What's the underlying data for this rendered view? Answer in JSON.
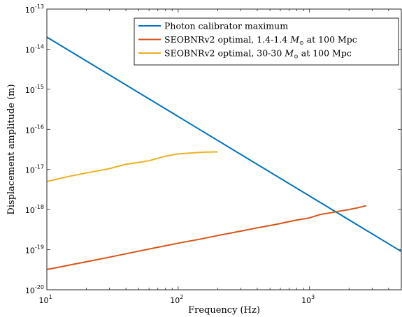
{
  "chart_data": {
    "type": "line",
    "xscale": "log",
    "yscale": "log",
    "xlim": [
      10,
      5000
    ],
    "ylim": [
      1e-20,
      1e-13
    ],
    "xlabel": "Frequency (Hz)",
    "ylabel": "Displacement amplitude (m)",
    "x_ticks": [
      {
        "value": 10,
        "base": "10",
        "exp": "1"
      },
      {
        "value": 100,
        "base": "10",
        "exp": "2"
      },
      {
        "value": 1000,
        "base": "10",
        "exp": "3"
      }
    ],
    "y_ticks": [
      {
        "value": 1e-20,
        "base": "10",
        "exp": "-20"
      },
      {
        "value": 1e-19,
        "base": "10",
        "exp": "-19"
      },
      {
        "value": 1e-18,
        "base": "10",
        "exp": "-18"
      },
      {
        "value": 1e-17,
        "base": "10",
        "exp": "-17"
      },
      {
        "value": 1e-16,
        "base": "10",
        "exp": "-16"
      },
      {
        "value": 1e-15,
        "base": "10",
        "exp": "-15"
      },
      {
        "value": 1e-14,
        "base": "10",
        "exp": "-14"
      },
      {
        "value": 1e-13,
        "base": "10",
        "exp": "-13"
      }
    ],
    "legend_position": "top-right",
    "series": [
      {
        "name": "Photon calibrator maximum",
        "legend_prefix": "Photon calibrator maximum",
        "legend_mass": "",
        "legend_suffix": "",
        "color": "#0072bd",
        "x": [
          10,
          5000
        ],
        "y": [
          2e-14,
          9e-20
        ]
      },
      {
        "name": "SEOBNRv2 optimal, 1.4-1.4 M⊙ at 100 Mpc",
        "legend_prefix": "SEOBNRv2 optimal, 1.4-1.4 ",
        "legend_mass": "M",
        "legend_suffix": " at 100 Mpc",
        "color": "#d95319",
        "x": [
          10,
          20,
          30,
          50,
          70,
          100,
          150,
          200,
          300,
          400,
          500,
          600,
          700,
          800,
          1000,
          1200,
          1500,
          2000,
          2300,
          2700
        ],
        "y": [
          3.2e-20,
          5e-20,
          6.5e-20,
          9.2e-20,
          1.15e-19,
          1.45e-19,
          1.85e-19,
          2.25e-19,
          2.9e-19,
          3.5e-19,
          4e-19,
          4.5e-19,
          5e-19,
          5.5e-19,
          6.2e-19,
          7.5e-19,
          8.5e-19,
          1e-18,
          1.1e-18,
          1.25e-18
        ]
      },
      {
        "name": "SEOBNRv2 optimal, 30-30 M⊙ at 100 Mpc",
        "legend_prefix": "SEOBNRv2 optimal, 30-30 ",
        "legend_mass": "M",
        "legend_suffix": " at 100 Mpc",
        "color": "#edb120",
        "x": [
          10,
          15,
          20,
          30,
          40,
          50,
          60,
          70,
          80,
          100,
          130,
          160,
          200
        ],
        "y": [
          5e-18,
          6.8e-18,
          8.2e-18,
          1.05e-17,
          1.35e-17,
          1.5e-17,
          1.65e-17,
          1.9e-17,
          2.15e-17,
          2.45e-17,
          2.6e-17,
          2.7e-17,
          2.75e-17
        ]
      }
    ]
  }
}
